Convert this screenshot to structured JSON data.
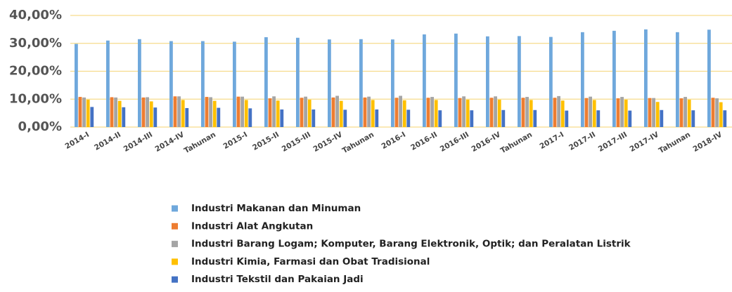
{
  "chart_data": {
    "type": "bar",
    "categories": [
      "2014-I",
      "2014-II",
      "2014-III",
      "2014-IV",
      "Tahunan",
      "2015-I",
      "2015-II",
      "2015-III",
      "2015-IV",
      "Tahunan",
      "2016-I",
      "2016-II",
      "2016-III",
      "2016-IV",
      "Tahunan",
      "2017-I",
      "2017-II",
      "2017-III",
      "2017-IV",
      "Tahunan",
      "2018-IV"
    ],
    "series": [
      {
        "name": "Industri Makanan dan Minuman",
        "color": "#6fa8dc",
        "values": [
          29.8,
          31.0,
          31.5,
          30.8,
          30.8,
          30.6,
          32.2,
          32.0,
          31.4,
          31.5,
          31.4,
          33.2,
          33.5,
          32.5,
          32.6,
          32.3,
          34.0,
          34.5,
          35.0,
          34.0,
          34.9
        ]
      },
      {
        "name": "Industri Alat Angkutan",
        "color": "#ed7d31",
        "values": [
          10.8,
          10.7,
          10.6,
          11.0,
          10.8,
          10.9,
          10.3,
          10.5,
          10.6,
          10.6,
          10.5,
          10.5,
          10.4,
          10.5,
          10.5,
          10.5,
          10.4,
          10.3,
          10.4,
          10.3,
          10.5
        ]
      },
      {
        "name": "Industri Barang Logam; Komputer, Barang Elektronik, Optik; dan Peralatan Listrik",
        "color": "#a5a5a5",
        "values": [
          10.6,
          10.6,
          10.7,
          11.0,
          10.7,
          10.9,
          11.0,
          10.9,
          11.2,
          10.9,
          11.2,
          10.8,
          11.0,
          11.0,
          10.8,
          11.1,
          10.9,
          10.8,
          10.4,
          10.8,
          10.3
        ]
      },
      {
        "name": "Industri Kimia, Farmasi dan Obat Tradisional",
        "color": "#ffc000",
        "values": [
          9.8,
          9.4,
          9.2,
          9.7,
          9.4,
          9.7,
          9.5,
          9.8,
          9.4,
          9.7,
          9.6,
          9.7,
          9.8,
          9.8,
          9.7,
          9.5,
          9.7,
          9.8,
          9.0,
          9.8,
          8.9
        ]
      },
      {
        "name": "Industri Tekstil dan Pakaian Jadi",
        "color": "#4472c4",
        "values": [
          7.2,
          7.1,
          7.0,
          6.8,
          6.9,
          6.7,
          6.3,
          6.3,
          6.2,
          6.3,
          6.2,
          6.0,
          6.0,
          6.1,
          6.1,
          5.9,
          6.0,
          5.9,
          6.1,
          6.0,
          6.0
        ]
      }
    ],
    "ylim": [
      0,
      40
    ],
    "yticks": [
      {
        "value": 0,
        "label": "0,00%"
      },
      {
        "value": 10,
        "label": "10,00%"
      },
      {
        "value": 20,
        "label": "20,00%"
      },
      {
        "value": 30,
        "label": "30,00%"
      },
      {
        "value": 40,
        "label": "40,00%"
      }
    ],
    "grid": true
  }
}
